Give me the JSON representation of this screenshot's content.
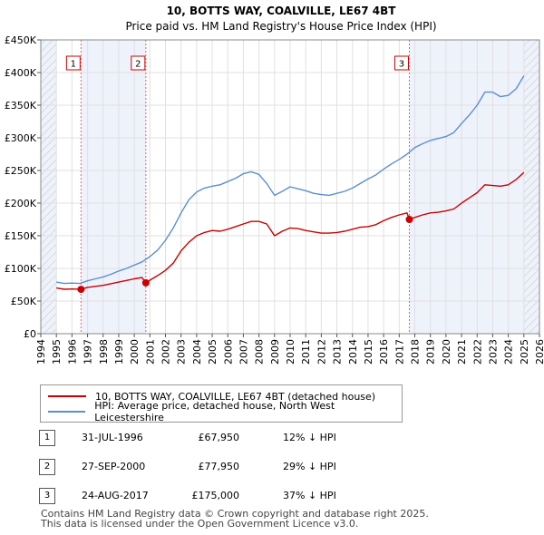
{
  "chart_data": {
    "type": "line",
    "title": "10, BOTTS WAY, COALVILLE, LE67 4BT",
    "subtitle": "Price paid vs. HM Land Registry's House Price Index (HPI)",
    "xlim": [
      1994,
      2026
    ],
    "ylim": [
      0,
      450000
    ],
    "y_ticks": [
      0,
      50000,
      100000,
      150000,
      200000,
      250000,
      300000,
      350000,
      400000,
      450000
    ],
    "y_tick_labels": [
      "£0",
      "£50K",
      "£100K",
      "£150K",
      "£200K",
      "£250K",
      "£300K",
      "£350K",
      "£400K",
      "£450K"
    ],
    "x_ticks": [
      1994,
      1995,
      1996,
      1997,
      1998,
      1999,
      2000,
      2001,
      2002,
      2003,
      2004,
      2005,
      2006,
      2007,
      2008,
      2009,
      2010,
      2011,
      2012,
      2013,
      2014,
      2015,
      2016,
      2017,
      2018,
      2019,
      2020,
      2021,
      2022,
      2023,
      2024,
      2025,
      2026
    ],
    "x_tick_labels": [
      "1994",
      "1995",
      "1996",
      "1997",
      "1998",
      "1999",
      "2000",
      "2001",
      "2002",
      "2003",
      "2004",
      "2005",
      "2006",
      "2007",
      "2008",
      "2009",
      "2010",
      "2011",
      "2012",
      "2013",
      "2014",
      "2015",
      "2016",
      "2017",
      "2018",
      "2019",
      "2020",
      "2021",
      "2022",
      "2023",
      "2024",
      "2025",
      "2026"
    ],
    "shaded_ranges": [
      [
        1994,
        1995
      ],
      [
        1996.58,
        2000.74
      ],
      [
        2017.65,
        2025.0
      ],
      [
        2025.0,
        2026
      ]
    ],
    "hatched_ranges": [
      [
        1994,
        1995
      ],
      [
        2025.0,
        2026
      ]
    ],
    "series": [
      {
        "name": "10, BOTTS WAY, COALVILLE, LE67 4BT (detached house)",
        "color": "#cc0000",
        "x": [
          1995.0,
          1995.5,
          1996.0,
          1996.58,
          1997.0,
          1997.5,
          1998.0,
          1998.5,
          1999.0,
          1999.5,
          2000.0,
          2000.5,
          2000.74,
          2001.0,
          2001.5,
          2002.0,
          2002.5,
          2003.0,
          2003.5,
          2004.0,
          2004.5,
          2005.0,
          2005.5,
          2006.0,
          2006.5,
          2007.0,
          2007.5,
          2008.0,
          2008.5,
          2009.0,
          2009.5,
          2010.0,
          2010.5,
          2011.0,
          2011.5,
          2012.0,
          2012.5,
          2013.0,
          2013.5,
          2014.0,
          2014.5,
          2015.0,
          2015.5,
          2016.0,
          2016.5,
          2017.0,
          2017.5,
          2017.65,
          2018.0,
          2018.5,
          2019.0,
          2019.5,
          2020.0,
          2020.5,
          2021.0,
          2021.5,
          2022.0,
          2022.5,
          2023.0,
          2023.5,
          2024.0,
          2024.5,
          2025.0
        ],
        "y": [
          70000,
          68000,
          68500,
          67950,
          71000,
          72500,
          74000,
          76500,
          79000,
          81500,
          84000,
          86000,
          77950,
          82000,
          89000,
          97000,
          108000,
          127000,
          140000,
          150000,
          155000,
          158000,
          157000,
          160000,
          164000,
          168000,
          172000,
          172000,
          168000,
          150000,
          157000,
          162000,
          161000,
          158000,
          156000,
          154000,
          154000,
          155000,
          157000,
          160000,
          163000,
          164000,
          167000,
          173000,
          178000,
          182000,
          185000,
          175000,
          178000,
          182000,
          185000,
          186000,
          188000,
          191000,
          200000,
          208000,
          216000,
          228000,
          227000,
          226000,
          228000,
          236000,
          247000
        ]
      },
      {
        "name": "HPI: Average price, detached house, North West Leicestershire",
        "color": "#5b8fd0",
        "x": [
          1995.0,
          1995.5,
          1996.0,
          1996.5,
          1997.0,
          1997.5,
          1998.0,
          1998.5,
          1999.0,
          1999.5,
          2000.0,
          2000.5,
          2001.0,
          2001.5,
          2002.0,
          2002.5,
          2003.0,
          2003.5,
          2004.0,
          2004.5,
          2005.0,
          2005.5,
          2006.0,
          2006.5,
          2007.0,
          2007.5,
          2008.0,
          2008.5,
          2009.0,
          2009.5,
          2010.0,
          2010.5,
          2011.0,
          2011.5,
          2012.0,
          2012.5,
          2013.0,
          2013.5,
          2014.0,
          2014.5,
          2015.0,
          2015.5,
          2016.0,
          2016.5,
          2017.0,
          2017.5,
          2018.0,
          2018.5,
          2019.0,
          2019.5,
          2020.0,
          2020.5,
          2021.0,
          2021.5,
          2022.0,
          2022.5,
          2023.0,
          2023.5,
          2024.0,
          2024.5,
          2025.0
        ],
        "y": [
          79000,
          77000,
          77500,
          77000,
          81000,
          84000,
          87000,
          91000,
          96000,
          100000,
          105000,
          110000,
          118000,
          128000,
          143000,
          162000,
          185000,
          205000,
          217000,
          223000,
          226000,
          228000,
          233000,
          238000,
          245000,
          248000,
          244000,
          230000,
          212000,
          218000,
          225000,
          222000,
          219000,
          215000,
          213000,
          212000,
          215000,
          218000,
          223000,
          230000,
          237000,
          243000,
          252000,
          260000,
          267000,
          275000,
          285000,
          291000,
          296000,
          299000,
          302000,
          308000,
          322000,
          335000,
          350000,
          370000,
          370000,
          363000,
          365000,
          375000,
          395000
        ]
      }
    ],
    "sale_points": [
      {
        "label": "1",
        "x": 1996.58,
        "y": 67950
      },
      {
        "label": "2",
        "x": 2000.74,
        "y": 77950
      },
      {
        "label": "3",
        "x": 2017.65,
        "y": 175000
      }
    ]
  },
  "legend": {
    "property_label": "10, BOTTS WAY, COALVILLE, LE67 4BT (detached house)",
    "hpi_label": "HPI: Average price, detached house, North West Leicestershire"
  },
  "sales": [
    {
      "num": "1",
      "date": "31-JUL-1996",
      "price": "£67,950",
      "hpi": "12% ↓ HPI"
    },
    {
      "num": "2",
      "date": "27-SEP-2000",
      "price": "£77,950",
      "hpi": "29% ↓ HPI"
    },
    {
      "num": "3",
      "date": "24-AUG-2017",
      "price": "£175,000",
      "hpi": "37% ↓ HPI"
    }
  ],
  "footer": {
    "line1": "Contains HM Land Registry data © Crown copyright and database right 2025.",
    "line2": "This data is licensed under the Open Government Licence v3.0."
  }
}
